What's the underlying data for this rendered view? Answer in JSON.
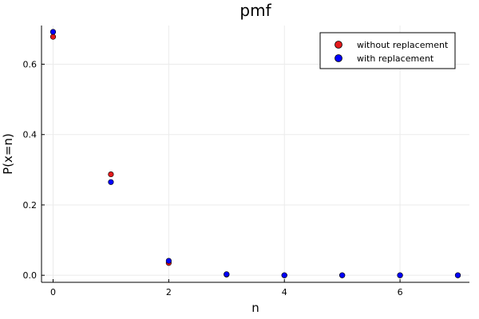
{
  "chart_data": {
    "type": "scatter",
    "title": "pmf",
    "xlabel": "n",
    "ylabel": "P(x=n)",
    "xlim": [
      -0.2,
      7.2
    ],
    "ylim": [
      -0.02,
      0.71
    ],
    "xticks": [
      0,
      2,
      4,
      6
    ],
    "xtick_labels": [
      "0",
      "2",
      "4",
      "6"
    ],
    "yticks": [
      0.0,
      0.2,
      0.4,
      0.6
    ],
    "ytick_labels": [
      "0.0",
      "0.2",
      "0.4",
      "0.6"
    ],
    "grid": true,
    "legend_position": "top-right",
    "series": [
      {
        "name": "without replacement",
        "color": "#e31a1c",
        "x": [
          0,
          1,
          2,
          3,
          4,
          5,
          6,
          7
        ],
        "y": [
          0.678,
          0.287,
          0.035,
          0.002,
          0.0,
          0.0,
          0.0,
          0.0
        ]
      },
      {
        "name": "with replacement",
        "color": "#0000ff",
        "x": [
          0,
          1,
          2,
          3,
          4,
          5,
          6,
          7
        ],
        "y": [
          0.692,
          0.265,
          0.041,
          0.003,
          0.0,
          0.0,
          0.0,
          0.0
        ]
      }
    ]
  }
}
